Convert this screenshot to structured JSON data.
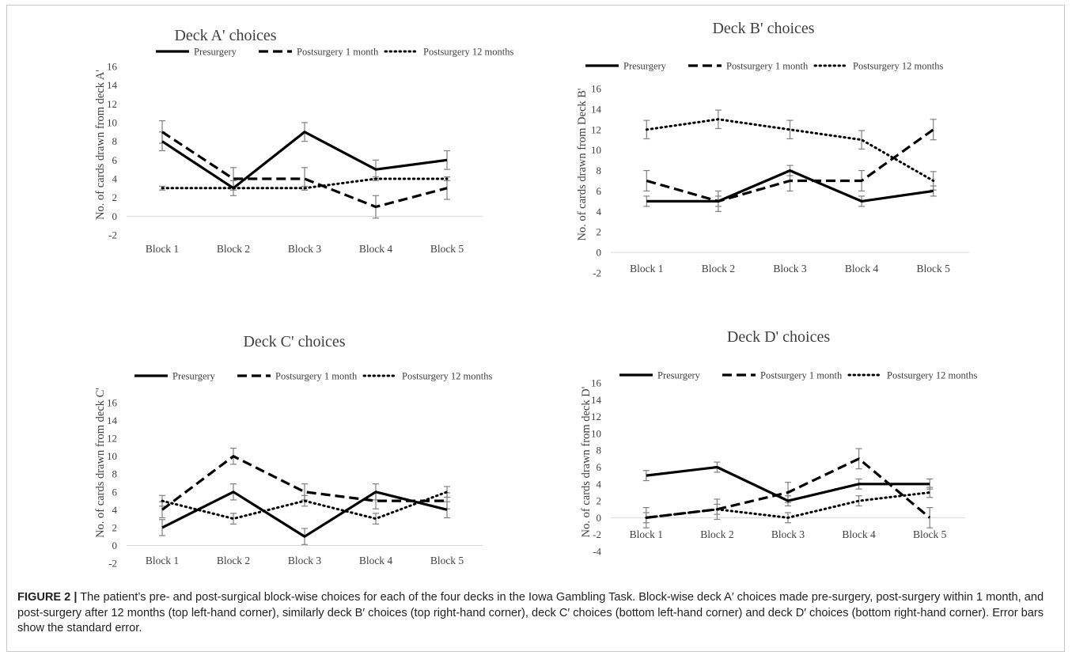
{
  "legend": {
    "presurgery": "Presurgery",
    "post1": "Postsurgery 1 month",
    "post12": "Postsurgery 12 months"
  },
  "colors": {
    "line": "#000000",
    "axis": "#d9d9d9",
    "error_bar": "#808080",
    "text": "#404040"
  },
  "chart_data": [
    {
      "id": "A",
      "type": "line",
      "title": "Deck A' choices",
      "ylabel": "No. of cards drawn from deck A'",
      "categories": [
        "Block 1",
        "Block 2",
        "Block 3",
        "Block 4",
        "Block 5"
      ],
      "ylim": [
        -2,
        16
      ],
      "yticks": [
        -2,
        0,
        2,
        4,
        6,
        8,
        10,
        12,
        14,
        16
      ],
      "legend_position": "top",
      "grid": false,
      "series": [
        {
          "name": "Presurgery",
          "style": "solid",
          "values": [
            8,
            3,
            9,
            5,
            6
          ],
          "error": [
            1,
            0.8,
            1,
            1,
            1
          ]
        },
        {
          "name": "Postsurgery 1 month",
          "style": "dashed",
          "values": [
            9,
            4,
            4,
            1,
            3
          ],
          "error": [
            1.2,
            1.2,
            1.2,
            1.2,
            1.2
          ]
        },
        {
          "name": "Postsurgery 12 months",
          "style": "dotted",
          "values": [
            3,
            3,
            3,
            4,
            4
          ],
          "error": [
            0.2,
            0.2,
            0.2,
            0.2,
            0.2
          ]
        }
      ]
    },
    {
      "id": "B",
      "type": "line",
      "title": "Deck B' choices",
      "ylabel": "No. of cards drawn from Deck B'",
      "categories": [
        "Block 1",
        "Block 2",
        "Block 3",
        "Block 4",
        "Block 5"
      ],
      "ylim": [
        -2,
        16
      ],
      "yticks": [
        -2,
        0,
        2,
        4,
        6,
        8,
        10,
        12,
        14,
        16
      ],
      "legend_position": "top",
      "grid": false,
      "series": [
        {
          "name": "Presurgery",
          "style": "solid",
          "values": [
            5,
            5,
            8,
            5,
            6
          ],
          "error": [
            0.5,
            0.5,
            0.5,
            0.5,
            0.5
          ]
        },
        {
          "name": "Postsurgery 1 month",
          "style": "dashed",
          "values": [
            7,
            5,
            7,
            7,
            12
          ],
          "error": [
            1,
            1,
            1,
            1,
            1
          ]
        },
        {
          "name": "Postsurgery 12 months",
          "style": "dotted",
          "values": [
            12,
            13,
            12,
            11,
            7
          ],
          "error": [
            0.9,
            0.9,
            0.9,
            0.9,
            0.9
          ]
        }
      ]
    },
    {
      "id": "C",
      "type": "line",
      "title": "Deck C' choices",
      "ylabel": "No. of cards drawn from deck C'",
      "categories": [
        "Block 1",
        "Block 2",
        "Block 3",
        "Block 4",
        "Block 5"
      ],
      "ylim": [
        -2,
        16
      ],
      "yticks": [
        -2,
        0,
        2,
        4,
        6,
        8,
        10,
        12,
        14,
        16
      ],
      "legend_position": "top",
      "grid": false,
      "series": [
        {
          "name": "Presurgery",
          "style": "solid",
          "values": [
            2,
            6,
            1,
            6,
            4
          ],
          "error": [
            0.9,
            0.9,
            0.9,
            0.9,
            0.9
          ]
        },
        {
          "name": "Postsurgery 1 month",
          "style": "dashed",
          "values": [
            4,
            10,
            6,
            5,
            5
          ],
          "error": [
            0.9,
            0.9,
            0.9,
            0.9,
            0.9
          ]
        },
        {
          "name": "Postsurgery 12 months",
          "style": "dotted",
          "values": [
            5,
            3,
            5,
            3,
            6
          ],
          "error": [
            0.6,
            0.6,
            0.6,
            0.6,
            0.6
          ]
        }
      ]
    },
    {
      "id": "D",
      "type": "line",
      "title": "Deck D' choices",
      "ylabel": "No. of cards drawn from deck D'",
      "categories": [
        "Block 1",
        "Block 2",
        "Block 3",
        "Block 4",
        "Block 5"
      ],
      "ylim": [
        -4,
        16
      ],
      "yticks": [
        -4,
        -2,
        0,
        2,
        4,
        6,
        8,
        10,
        12,
        14,
        16
      ],
      "legend_position": "top",
      "grid": false,
      "series": [
        {
          "name": "Presurgery",
          "style": "solid",
          "values": [
            5,
            6,
            2,
            4,
            4
          ],
          "error": [
            0.6,
            0.6,
            0.6,
            0.6,
            0.6
          ]
        },
        {
          "name": "Postsurgery 1 month",
          "style": "dashed",
          "values": [
            0,
            1,
            3,
            7,
            0
          ],
          "error": [
            1.2,
            1.2,
            1.2,
            1.2,
            1.2
          ]
        },
        {
          "name": "Postsurgery 12 months",
          "style": "dotted",
          "values": [
            0,
            1,
            0,
            2,
            3
          ],
          "error": [
            0.6,
            0.6,
            0.6,
            0.6,
            0.6
          ]
        }
      ]
    }
  ],
  "caption": {
    "label": "FIGURE 2 |",
    "text": " The patient’s pre- and post-surgical block-wise choices for each of the four decks in the Iowa Gambling Task. Block-wise deck A′ choices made pre-surgery, post-surgery within 1 month, and post-surgery after 12 months (top left-hand corner), similarly deck B′ choices (top right-hand corner), deck C′ choices (bottom left-hand corner) and deck D′ choices (bottom right-hand corner). Error bars show the standard error."
  }
}
